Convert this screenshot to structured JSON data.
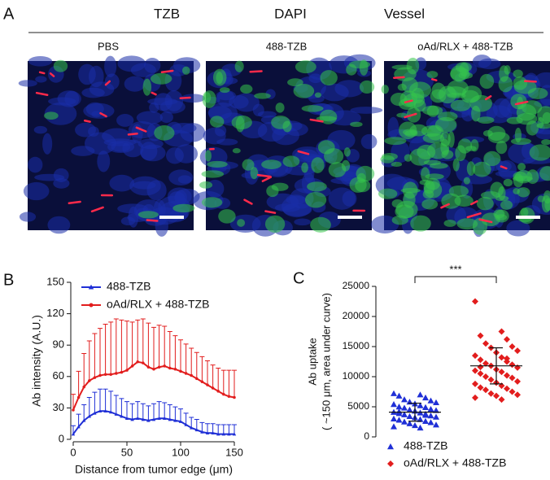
{
  "panel_a": {
    "label": "A",
    "channels": [
      {
        "name": "TZB",
        "color": "#22b14c"
      },
      {
        "name": "DAPI",
        "color": "#1f6fd1"
      },
      {
        "name": "Vessel",
        "color": "#e8202a"
      }
    ],
    "groups": [
      "PBS",
      "488-TZB",
      "oAd/RLX + 488-TZB"
    ]
  },
  "chart_data": [
    {
      "type": "line",
      "panel_label": "B",
      "xlabel": "Distance from tumor edge (μm)",
      "ylabel": "Ab intensity (A.U.)",
      "x": [
        0,
        5,
        10,
        15,
        20,
        25,
        30,
        35,
        40,
        45,
        50,
        55,
        60,
        65,
        70,
        75,
        80,
        85,
        90,
        95,
        100,
        105,
        110,
        115,
        120,
        125,
        130,
        135,
        140,
        145,
        150
      ],
      "xlim": [
        0,
        150
      ],
      "xticks": [
        0,
        50,
        100,
        150
      ],
      "ylim": [
        0,
        150
      ],
      "yticks": [
        0,
        30,
        60,
        90,
        120,
        150
      ],
      "series": [
        {
          "name": "488-TZB",
          "color": "#1f2fd6",
          "marker": "triangle",
          "values": [
            5,
            12,
            18,
            22,
            25,
            27,
            27,
            26,
            24,
            22,
            20,
            19,
            20,
            19,
            18,
            19,
            20,
            20,
            19,
            18,
            17,
            14,
            11,
            9,
            7,
            6,
            6,
            5,
            5,
            5,
            5
          ],
          "errors": [
            8,
            12,
            15,
            18,
            20,
            21,
            21,
            20,
            18,
            17,
            16,
            15,
            16,
            15,
            14,
            15,
            16,
            15,
            14,
            13,
            12,
            11,
            10,
            10,
            9,
            9,
            9,
            9,
            9,
            9,
            9
          ]
        },
        {
          "name": "oAd/RLX + 488-TZB",
          "color": "#e21d1d",
          "marker": "circle",
          "values": [
            28,
            40,
            50,
            56,
            59,
            61,
            62,
            62,
            63,
            64,
            66,
            70,
            74,
            73,
            69,
            67,
            69,
            70,
            68,
            67,
            65,
            63,
            61,
            58,
            55,
            52,
            49,
            46,
            43,
            41,
            40
          ],
          "errors": [
            15,
            25,
            32,
            38,
            42,
            45,
            48,
            50,
            52,
            50,
            47,
            42,
            40,
            42,
            42,
            40,
            40,
            38,
            35,
            32,
            30,
            28,
            26,
            25,
            24,
            23,
            22,
            22,
            23,
            25,
            26
          ]
        }
      ]
    },
    {
      "type": "dot",
      "panel_label": "C",
      "ylabel": [
        "Ab uptake",
        "( ~150 μm, area under curve)"
      ],
      "ylim": [
        0,
        25000
      ],
      "yticks": [
        0,
        5000,
        10000,
        15000,
        20000,
        25000
      ],
      "significance": "***",
      "series": [
        {
          "name": "488-TZB",
          "color": "#1f2fd6",
          "marker": "triangle",
          "mean": 4100,
          "sd": 1500,
          "values": [
            7200,
            7000,
            6800,
            6500,
            6200,
            6000,
            5800,
            5700,
            5500,
            5400,
            5200,
            5000,
            4900,
            4800,
            4600,
            4500,
            4400,
            4300,
            4100,
            4000,
            3900,
            3800,
            3700,
            3500,
            3400,
            3300,
            3200,
            3000,
            2900,
            2800,
            2600,
            2500,
            2400,
            2200,
            2000,
            1900,
            1700,
            1500,
            4200,
            3600
          ]
        },
        {
          "name": "oAd/RLX + 488-TZB",
          "color": "#e21d1d",
          "marker": "diamond",
          "mean": 11800,
          "sd": 3000,
          "values": [
            22500,
            17500,
            16800,
            16200,
            15500,
            15000,
            14800,
            14300,
            14000,
            13500,
            13200,
            12800,
            12500,
            12200,
            12000,
            11800,
            11500,
            11200,
            11000,
            10800,
            10500,
            10200,
            10000,
            9800,
            9500,
            9200,
            9000,
            8800,
            8500,
            8200,
            8000,
            7800,
            7500,
            7200,
            7000,
            6800,
            6500,
            6200,
            11600,
            13000
          ]
        }
      ]
    }
  ]
}
